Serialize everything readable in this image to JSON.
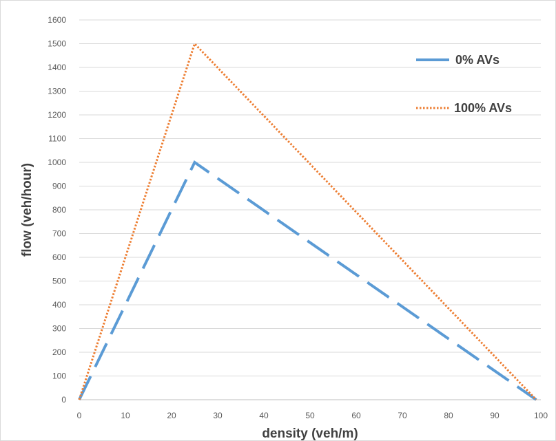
{
  "chart_data": {
    "type": "line",
    "title": "",
    "xlabel": "density (veh/m)",
    "ylabel": "flow (veh/hour)",
    "xlim": [
      0,
      100
    ],
    "ylim": [
      0,
      1600
    ],
    "x_ticks": [
      0,
      10,
      20,
      30,
      40,
      50,
      60,
      70,
      80,
      90,
      100
    ],
    "y_ticks": [
      0,
      100,
      200,
      300,
      400,
      500,
      600,
      700,
      800,
      900,
      1000,
      1100,
      1200,
      1300,
      1400,
      1500,
      1600
    ],
    "grid": "horizontal",
    "legend_position": "top-right",
    "series": [
      {
        "name": "0% AVs",
        "color": "#5b9bd5",
        "line_style": "dashed",
        "points": [
          [
            0,
            0
          ],
          [
            25,
            1000
          ],
          [
            99,
            0
          ]
        ]
      },
      {
        "name": "100% AVs",
        "color": "#ed7d31",
        "line_style": "dotted",
        "points": [
          [
            0,
            0
          ],
          [
            25,
            1500
          ],
          [
            99,
            0
          ]
        ]
      }
    ]
  }
}
